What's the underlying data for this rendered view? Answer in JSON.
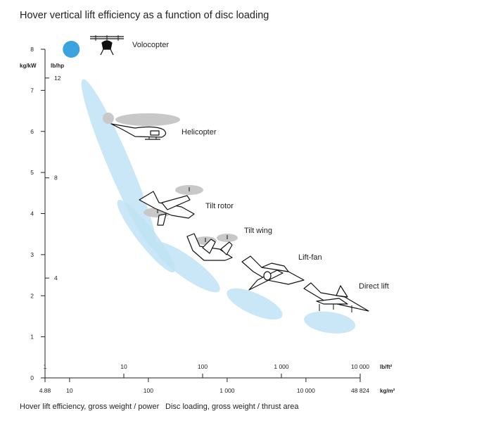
{
  "chart_data": {
    "type": "scatter",
    "title": "Hover vertical lift efficiency as a function of disc loading",
    "xlabel": "Disc loading, gross weight / thrust area",
    "ylabel": "Hover lift efficiency, gross weight / power",
    "x_scale": "log",
    "y_unit_primary": "kg/kW",
    "y_unit_secondary": "lb/hp",
    "x_unit_top": "lb/ft²",
    "x_unit_bottom": "kg/m²",
    "ylim": [
      0,
      8
    ],
    "xlim_kg_m2": [
      4.88,
      48824
    ],
    "y_ticks_kgkw": [
      "0",
      "1",
      "2",
      "3",
      "4",
      "5",
      "6",
      "7",
      "8"
    ],
    "y_ticks_lbhp": [
      {
        "label": "4",
        "kgkw": 2.43
      },
      {
        "label": "8",
        "kgkw": 4.87
      },
      {
        "label": "12",
        "kgkw": 7.3
      }
    ],
    "x_ticks_top": [
      {
        "label": "1",
        "kgm2": 4.88
      },
      {
        "label": "10",
        "kgm2": 48.8
      },
      {
        "label": "100",
        "kgm2": 488
      },
      {
        "label": "1 000",
        "kgm2": 4882
      },
      {
        "label": "10 000",
        "kgm2": 48824
      }
    ],
    "x_ticks_bottom": [
      {
        "label": "4.88",
        "kgm2": 4.88
      },
      {
        "label": "10",
        "kgm2": 10
      },
      {
        "label": "100",
        "kgm2": 100
      },
      {
        "label": "1 000",
        "kgm2": 1000
      },
      {
        "label": "10 000",
        "kgm2": 10000
      },
      {
        "label": "48 824",
        "kgm2": 48824
      }
    ],
    "regions": [
      {
        "name": "Helicopter",
        "x_range_kgm2": [
          10,
          180
        ],
        "y_range_kgkw": [
          3.3,
          7.1
        ]
      },
      {
        "name": "Tilt rotor",
        "x_range_kgm2": [
          40,
          220
        ],
        "y_range_kgkw": [
          2.6,
          4.3
        ]
      },
      {
        "name": "Tilt wing",
        "x_range_kgm2": [
          110,
          850
        ],
        "y_range_kgkw": [
          2.2,
          3.2
        ]
      },
      {
        "name": "Lift-fan",
        "x_range_kgm2": [
          1000,
          5000
        ],
        "y_range_kgkw": [
          1.5,
          2.1
        ]
      },
      {
        "name": "Direct lift",
        "x_range_kgm2": [
          10000,
          40000
        ],
        "y_range_kgkw": [
          1.1,
          1.6
        ]
      }
    ],
    "points": [
      {
        "name": "Volocopter",
        "x_kgm2": 10.5,
        "y_kgkw": 8.0
      }
    ],
    "series_labels": [
      "Volocopter",
      "Helicopter",
      "Tilt rotor",
      "Tilt wing",
      "Lift-fan",
      "Direct lift"
    ],
    "colors": {
      "region": "#bfe3f5",
      "point": "#3ba3dd",
      "rotor": "#c8c8c8",
      "axis": "#222222"
    }
  }
}
